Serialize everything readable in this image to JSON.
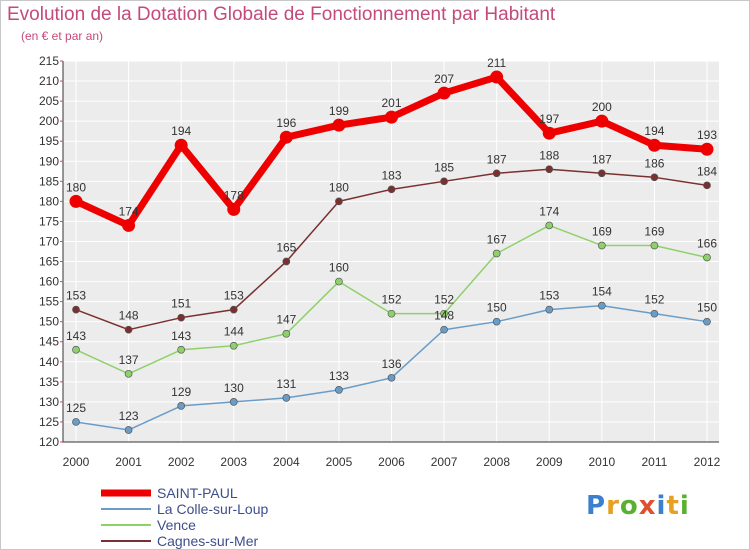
{
  "title": "Evolution de la Dotation Globale de Fonctionnement par Habitant",
  "subtitle": "(en € et par an)",
  "logo": {
    "text": "Proxiti",
    "colors": [
      "#3a7fd0",
      "#e8a020",
      "#5ab030",
      "#e05030",
      "#3a7fd0",
      "#e8a020",
      "#5ab030"
    ]
  },
  "chart_data": {
    "type": "line",
    "title": "Evolution de la Dotation Globale de Fonctionnement par Habitant",
    "subtitle": "(en € et par an)",
    "xlabel": "",
    "ylabel": "",
    "x": [
      "2000",
      "2001",
      "2002",
      "2003",
      "2004",
      "2005",
      "2006",
      "2007",
      "2008",
      "2009",
      "2010",
      "2011",
      "2012"
    ],
    "ylim": [
      120,
      215
    ],
    "yticks": [
      120,
      125,
      130,
      135,
      140,
      145,
      150,
      155,
      160,
      165,
      170,
      175,
      180,
      185,
      190,
      195,
      200,
      205,
      210,
      215
    ],
    "grid": true,
    "legend": "bottom-left",
    "series": [
      {
        "name": "SAINT-PAUL",
        "color": "#ee0000",
        "width": "thick",
        "values": [
          180,
          174,
          194,
          178,
          196,
          199,
          201,
          207,
          211,
          197,
          200,
          194,
          193
        ]
      },
      {
        "name": "La Colle-sur-Loup",
        "color": "#6a9cc8",
        "width": "thin",
        "values": [
          125,
          123,
          129,
          130,
          131,
          133,
          136,
          148,
          150,
          153,
          154,
          152,
          150
        ]
      },
      {
        "name": "Vence",
        "color": "#8ed16a",
        "width": "thin",
        "values": [
          143,
          137,
          143,
          144,
          147,
          160,
          152,
          152,
          167,
          174,
          169,
          169,
          166
        ]
      },
      {
        "name": "Cagnes-sur-Mer",
        "color": "#7a3030",
        "width": "thin",
        "values": [
          153,
          148,
          151,
          153,
          165,
          180,
          183,
          185,
          187,
          188,
          187,
          186,
          184
        ]
      }
    ]
  }
}
